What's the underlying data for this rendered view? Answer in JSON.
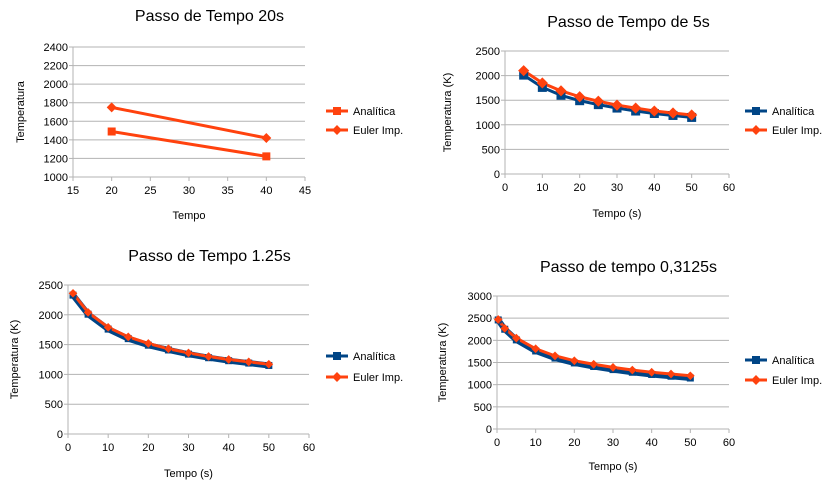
{
  "chart_data": [
    {
      "type": "line",
      "title": "Passo de Tempo 20s",
      "xlabel": "Tempo",
      "ylabel": "Temperatura",
      "xlim": [
        15,
        45
      ],
      "ylim": [
        1000,
        2400
      ],
      "xticks": [
        15,
        20,
        25,
        30,
        35,
        40,
        45
      ],
      "yticks": [
        1000,
        1200,
        1400,
        1600,
        1800,
        2000,
        2200,
        2400
      ],
      "grid": true,
      "legend": "right",
      "series": [
        {
          "name": "Analítica",
          "color": "#ff420e",
          "marker": "square",
          "x": [
            20,
            40
          ],
          "values": [
            1490,
            1222
          ]
        },
        {
          "name": "Euler Imp.",
          "color": "#ff420e",
          "marker": "diamond",
          "x": [
            20,
            40
          ],
          "values": [
            1750,
            1420
          ]
        }
      ]
    },
    {
      "type": "line",
      "title": "Passo de Tempo de 5s",
      "xlabel": "Tempo (s)",
      "ylabel": "Temperatura (K)",
      "xlim": [
        0,
        60
      ],
      "ylim": [
        0,
        2500
      ],
      "xticks": [
        0,
        10,
        20,
        30,
        40,
        50,
        60
      ],
      "yticks": [
        0,
        500,
        1000,
        1500,
        2000,
        2500
      ],
      "grid": true,
      "legend": "right",
      "series": [
        {
          "name": "Analítica",
          "color": "#004586",
          "marker": "square",
          "x": [
            5,
            10,
            15,
            20,
            25,
            30,
            35,
            40,
            45,
            50
          ],
          "values": [
            2010,
            1760,
            1600,
            1490,
            1410,
            1340,
            1280,
            1230,
            1190,
            1150
          ]
        },
        {
          "name": "Euler Imp.",
          "color": "#ff420e",
          "marker": "diamond",
          "x": [
            5,
            10,
            15,
            20,
            25,
            30,
            35,
            40,
            45,
            50
          ],
          "values": [
            2100,
            1850,
            1690,
            1570,
            1480,
            1400,
            1340,
            1280,
            1240,
            1200
          ]
        }
      ]
    },
    {
      "type": "line",
      "title": "Passo de Tempo 1.25s",
      "xlabel": "Tempo (s)",
      "ylabel": "Temperatura (K)",
      "xlim": [
        0,
        60
      ],
      "ylim": [
        0,
        2500
      ],
      "xticks": [
        0,
        10,
        20,
        30,
        40,
        50,
        60
      ],
      "yticks": [
        0,
        500,
        1000,
        1500,
        2000,
        2500
      ],
      "grid": true,
      "legend": "right",
      "series": [
        {
          "name": "Analítica",
          "color": "#004586",
          "marker": "square",
          "x": [
            1.25,
            5,
            10,
            15,
            20,
            25,
            30,
            35,
            40,
            45,
            50
          ],
          "values": [
            2330,
            2010,
            1760,
            1600,
            1490,
            1410,
            1340,
            1280,
            1230,
            1190,
            1150
          ]
        },
        {
          "name": "Euler Imp.",
          "color": "#ff420e",
          "marker": "diamond",
          "x": [
            1.25,
            5,
            10,
            15,
            20,
            25,
            30,
            35,
            40,
            45,
            50
          ],
          "values": [
            2360,
            2040,
            1790,
            1630,
            1520,
            1430,
            1360,
            1300,
            1250,
            1210,
            1170
          ]
        }
      ]
    },
    {
      "type": "line",
      "title": "Passo de tempo 0,3125s",
      "xlabel": "Tempo (s)",
      "ylabel": "Temperatura (K)",
      "xlim": [
        0,
        60
      ],
      "ylim": [
        0,
        3000
      ],
      "xticks": [
        0,
        10,
        20,
        30,
        40,
        50,
        60
      ],
      "yticks": [
        0,
        500,
        1000,
        1500,
        2000,
        2500,
        3000
      ],
      "grid": true,
      "legend": "right",
      "series": [
        {
          "name": "Analítica",
          "color": "#004586",
          "marker": "square",
          "x": [
            0.3125,
            2,
            5,
            10,
            15,
            20,
            25,
            30,
            35,
            40,
            45,
            50
          ],
          "values": [
            2460,
            2250,
            2010,
            1760,
            1600,
            1490,
            1410,
            1340,
            1280,
            1230,
            1190,
            1150
          ]
        },
        {
          "name": "Euler Imp.",
          "color": "#ff420e",
          "marker": "diamond",
          "x": [
            0.3125,
            2,
            5,
            10,
            15,
            20,
            25,
            30,
            35,
            40,
            45,
            50
          ],
          "values": [
            2470,
            2270,
            2050,
            1810,
            1650,
            1540,
            1460,
            1390,
            1330,
            1280,
            1240,
            1200
          ]
        }
      ]
    }
  ]
}
